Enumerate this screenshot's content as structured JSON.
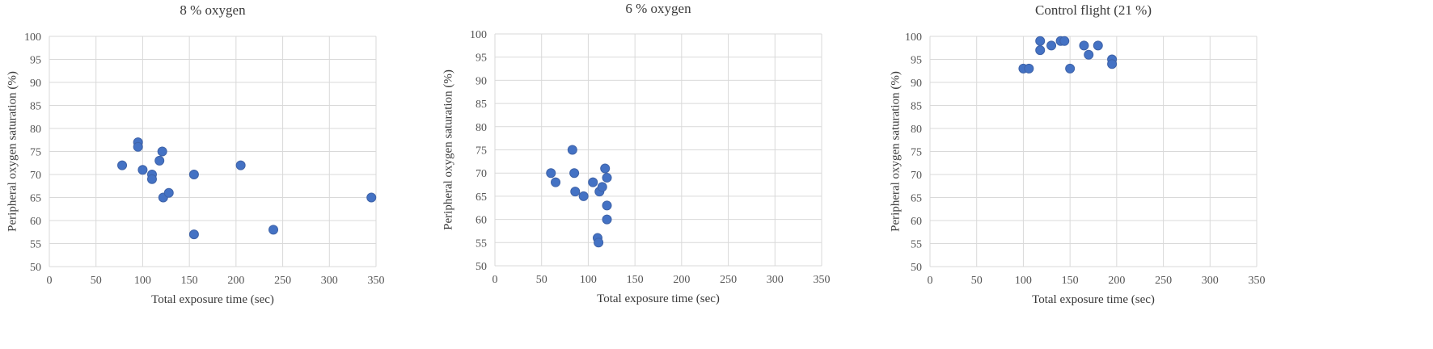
{
  "chart_data": [
    {
      "type": "scatter",
      "title": "8 % oxygen",
      "xlabel": "Total exposure time (sec)",
      "ylabel": "Peripheral oxygen saturation (%)",
      "xlim": [
        0,
        350
      ],
      "ylim": [
        50,
        100
      ],
      "xticks": [
        0,
        50,
        100,
        150,
        200,
        250,
        300,
        350
      ],
      "yticks": [
        50,
        55,
        60,
        65,
        70,
        75,
        80,
        85,
        90,
        95,
        100
      ],
      "grid": true,
      "color": "#4472C4",
      "series": [
        {
          "points": [
            {
              "x": 78,
              "y": 72
            },
            {
              "x": 95,
              "y": 77
            },
            {
              "x": 95,
              "y": 76
            },
            {
              "x": 100,
              "y": 71
            },
            {
              "x": 110,
              "y": 70
            },
            {
              "x": 110,
              "y": 69
            },
            {
              "x": 118,
              "y": 73
            },
            {
              "x": 121,
              "y": 75
            },
            {
              "x": 122,
              "y": 65
            },
            {
              "x": 128,
              "y": 66
            },
            {
              "x": 155,
              "y": 70
            },
            {
              "x": 155,
              "y": 57
            },
            {
              "x": 205,
              "y": 72
            },
            {
              "x": 240,
              "y": 58
            },
            {
              "x": 345,
              "y": 65
            }
          ]
        }
      ]
    },
    {
      "type": "scatter",
      "title": "6 % oxygen",
      "xlabel": "Total exposure time (sec)",
      "ylabel": "Peripheral oxygen saturation (%)",
      "xlim": [
        0,
        350
      ],
      "ylim": [
        50,
        100
      ],
      "xticks": [
        0,
        50,
        100,
        150,
        200,
        250,
        300,
        350
      ],
      "yticks": [
        50,
        55,
        60,
        65,
        70,
        75,
        80,
        85,
        90,
        95,
        100
      ],
      "grid": true,
      "color": "#4472C4",
      "series": [
        {
          "points": [
            {
              "x": 60,
              "y": 70
            },
            {
              "x": 65,
              "y": 68
            },
            {
              "x": 83,
              "y": 75
            },
            {
              "x": 85,
              "y": 70
            },
            {
              "x": 86,
              "y": 66
            },
            {
              "x": 95,
              "y": 65
            },
            {
              "x": 105,
              "y": 68
            },
            {
              "x": 110,
              "y": 56
            },
            {
              "x": 111,
              "y": 55
            },
            {
              "x": 112,
              "y": 66
            },
            {
              "x": 115,
              "y": 67
            },
            {
              "x": 118,
              "y": 71
            },
            {
              "x": 120,
              "y": 69
            },
            {
              "x": 120,
              "y": 63
            },
            {
              "x": 120,
              "y": 60
            }
          ]
        }
      ]
    },
    {
      "type": "scatter",
      "title": "Control flight (21 %)",
      "xlabel": "Total exposure time (sec)",
      "ylabel": "Peripheral oxygen saturation (%)",
      "xlim": [
        0,
        350
      ],
      "ylim": [
        50,
        100
      ],
      "xticks": [
        0,
        50,
        100,
        150,
        200,
        250,
        300,
        350
      ],
      "yticks": [
        50,
        55,
        60,
        65,
        70,
        75,
        80,
        85,
        90,
        95,
        100
      ],
      "grid": true,
      "color": "#4472C4",
      "series": [
        {
          "points": [
            {
              "x": 100,
              "y": 93
            },
            {
              "x": 106,
              "y": 93
            },
            {
              "x": 118,
              "y": 99
            },
            {
              "x": 118,
              "y": 97
            },
            {
              "x": 130,
              "y": 98
            },
            {
              "x": 140,
              "y": 99
            },
            {
              "x": 144,
              "y": 99
            },
            {
              "x": 150,
              "y": 93
            },
            {
              "x": 165,
              "y": 98
            },
            {
              "x": 170,
              "y": 96
            },
            {
              "x": 180,
              "y": 98
            },
            {
              "x": 195,
              "y": 95
            },
            {
              "x": 195,
              "y": 94
            }
          ]
        }
      ]
    }
  ]
}
